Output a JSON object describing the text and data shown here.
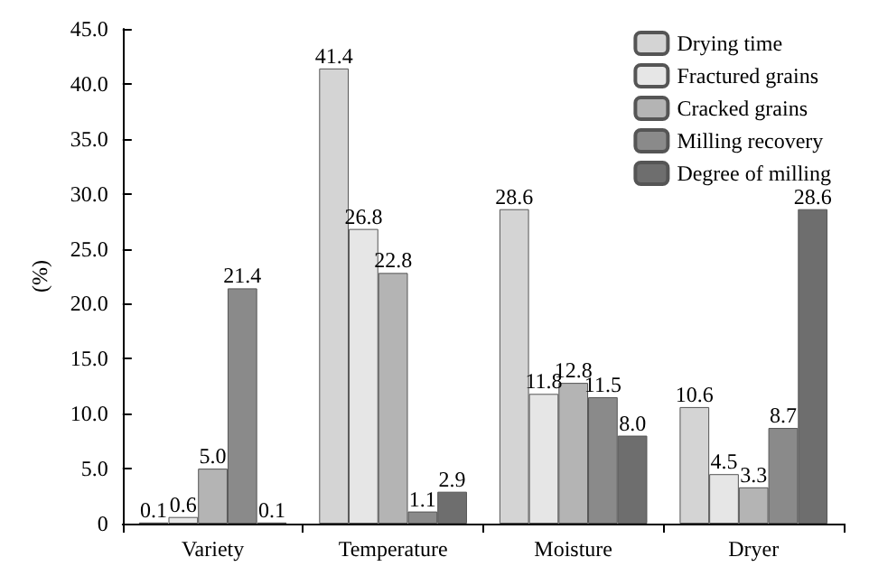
{
  "chart_data": {
    "type": "bar",
    "ylabel": "(%)",
    "categories": [
      "Variety",
      "Temperature",
      "Moisture",
      "Dryer"
    ],
    "series": [
      {
        "name": "Drying time",
        "color": "#d4d4d4",
        "values": [
          0.1,
          41.4,
          28.6,
          10.6
        ],
        "value_labels": [
          "0.1",
          "41.4",
          "28.6",
          "10.6"
        ]
      },
      {
        "name": "Fractured grains",
        "color": "#e6e6e6",
        "values": [
          0.6,
          26.8,
          11.8,
          4.5
        ],
        "value_labels": [
          "0.6",
          "26.8",
          "11.8",
          "4.5"
        ]
      },
      {
        "name": "Cracked grains",
        "color": "#b4b4b4",
        "values": [
          5.0,
          22.8,
          12.8,
          3.3
        ],
        "value_labels": [
          "5.0",
          "22.8",
          "12.8",
          "3.3"
        ]
      },
      {
        "name": "Milling recovery",
        "color": "#8a8a8a",
        "values": [
          21.4,
          1.1,
          11.5,
          8.7
        ],
        "value_labels": [
          "21.4",
          "1.1",
          "11.5",
          "8.7"
        ]
      },
      {
        "name": "Degree of milling",
        "color": "#6e6e6e",
        "values": [
          0.1,
          2.9,
          8.0,
          28.6
        ],
        "value_labels": [
          "0.1",
          "2.9",
          "8.0",
          "28.6"
        ]
      }
    ],
    "ylim": [
      0,
      45
    ],
    "yticks": [
      {
        "value": 0,
        "label": "0"
      },
      {
        "value": 5,
        "label": "5.0"
      },
      {
        "value": 10,
        "label": "10.0"
      },
      {
        "value": 15,
        "label": "15.0"
      },
      {
        "value": 20,
        "label": "20.0"
      },
      {
        "value": 25,
        "label": "25.0"
      },
      {
        "value": 30,
        "label": "30.0"
      },
      {
        "value": 35,
        "label": "35.0"
      },
      {
        "value": 40,
        "label": "40.0"
      },
      {
        "value": 45,
        "label": "45.0"
      }
    ],
    "grid": false,
    "legend": "top right"
  }
}
